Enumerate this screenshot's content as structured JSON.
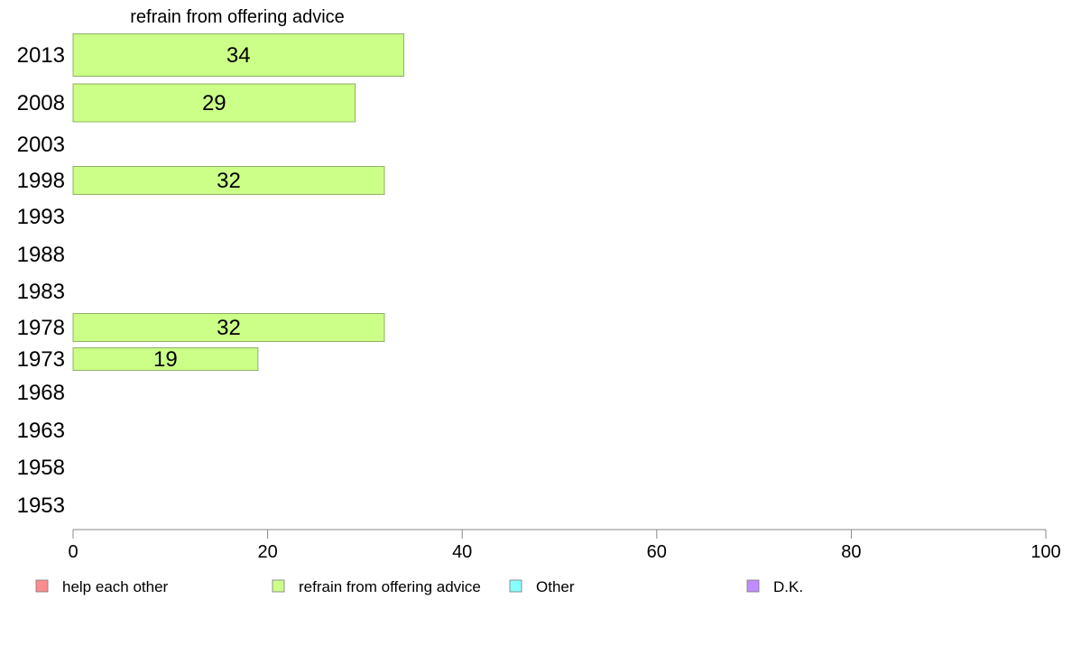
{
  "chart_data": {
    "type": "bar",
    "orientation": "horizontal",
    "title": "refrain from offering advice",
    "categories": [
      "2013",
      "2008",
      "2003",
      "1998",
      "1993",
      "1988",
      "1983",
      "1978",
      "1973",
      "1968",
      "1963",
      "1958",
      "1953"
    ],
    "series": [
      {
        "name": "refrain from offering advice",
        "color": "#ccff88",
        "values": [
          34,
          29,
          null,
          32,
          null,
          null,
          null,
          32,
          19,
          null,
          null,
          null,
          null
        ]
      }
    ],
    "xlim": [
      0,
      100
    ],
    "x_ticks": [
      "0",
      "20",
      "40",
      "60",
      "80",
      "100"
    ],
    "grid": false,
    "legend": {
      "position": "bottom",
      "items": [
        {
          "label": "help each other",
          "color": "#ff8c8c"
        },
        {
          "label": "refrain from offering advice",
          "color": "#ccff88"
        },
        {
          "label": "Other",
          "color": "#88ffff"
        },
        {
          "label": "D.K.",
          "color": "#c08cff"
        }
      ]
    }
  }
}
